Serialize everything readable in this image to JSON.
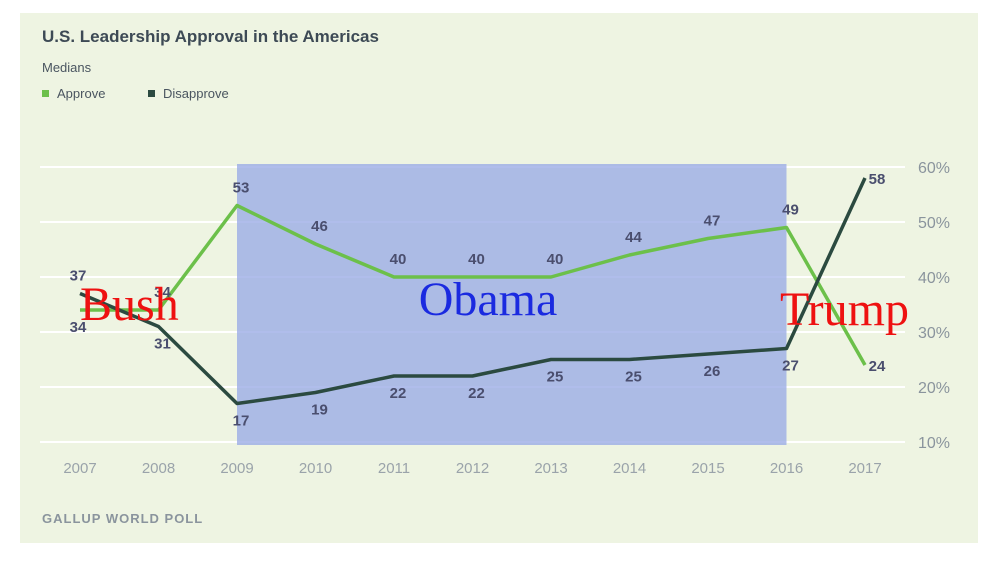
{
  "title": "U.S. Leadership Approval in the Americas",
  "subtitle": "Medians",
  "legend": [
    {
      "label": "Approve",
      "color": "#6cc04a"
    },
    {
      "label": "Disapprove",
      "color": "#2b4a40"
    }
  ],
  "source": "GALLUP WORLD POLL",
  "chart_data": {
    "type": "line",
    "x": [
      "2007",
      "2008",
      "2009",
      "2010",
      "2011",
      "2012",
      "2013",
      "2014",
      "2015",
      "2016",
      "2017"
    ],
    "series": [
      {
        "name": "Approve",
        "color": "#6cc04a",
        "values": [
          34,
          34,
          53,
          46,
          40,
          40,
          40,
          44,
          47,
          49,
          24
        ]
      },
      {
        "name": "Disapprove",
        "color": "#2b4a40",
        "values": [
          37,
          31,
          17,
          19,
          22,
          22,
          25,
          25,
          26,
          27,
          58
        ]
      }
    ],
    "y_ticks": [
      "10%",
      "20%",
      "30%",
      "40%",
      "50%",
      "60%"
    ],
    "ylim": [
      10,
      60
    ],
    "grid": true,
    "y_axis_side": "right",
    "annotations": [
      {
        "text": "Bush",
        "color": "#ee1111"
      },
      {
        "text": "Obama",
        "color": "#1a2ae0"
      },
      {
        "text": "Trump",
        "color": "#ee1111"
      }
    ],
    "highlight": {
      "from": "2009",
      "to": "2016",
      "color": "#9aaae6"
    }
  }
}
